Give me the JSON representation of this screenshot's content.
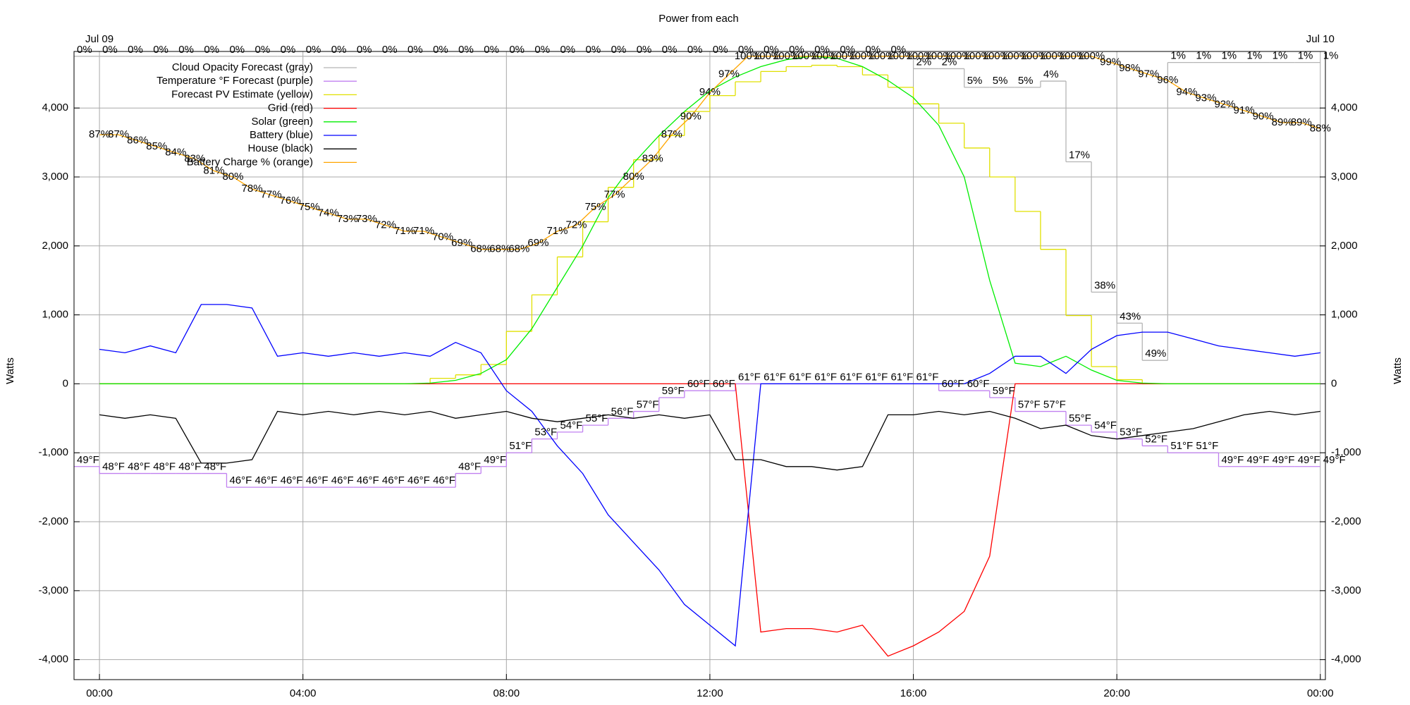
{
  "chart_data": {
    "type": "line",
    "title": "Power from each",
    "y_label": "Watts",
    "xlim": [
      -0.5,
      24.1
    ],
    "ylim": [
      -4290,
      4820
    ],
    "xticks": [
      {
        "value": 0,
        "label": "00:00"
      },
      {
        "value": 4,
        "label": "04:00"
      },
      {
        "value": 8,
        "label": "08:00"
      },
      {
        "value": 12,
        "label": "12:00"
      },
      {
        "value": 16,
        "label": "16:00"
      },
      {
        "value": 20,
        "label": "20:00"
      },
      {
        "value": 24,
        "label": "00:00"
      }
    ],
    "date_labels": [
      {
        "value": 0,
        "label": "Jul 09"
      },
      {
        "value": 24,
        "label": "Jul 10"
      }
    ],
    "yticks": [
      {
        "value": -4000,
        "label": "-4,000"
      },
      {
        "value": -3000,
        "label": "-3,000"
      },
      {
        "value": -2000,
        "label": "-2,000"
      },
      {
        "value": -1000,
        "label": "-1,000"
      },
      0,
      {
        "value": 1000,
        "label": "1,000"
      },
      {
        "value": 2000,
        "label": "2,000"
      },
      {
        "value": 3000,
        "label": "3,000"
      },
      {
        "value": 4000,
        "label": "4,000"
      }
    ],
    "grid": true,
    "legend": "top-left",
    "x": [
      0,
      0.5,
      1,
      1.5,
      2,
      2.5,
      3,
      3.5,
      4,
      4.5,
      5,
      5.5,
      6,
      6.5,
      7,
      7.5,
      8,
      8.5,
      9,
      9.5,
      10,
      10.5,
      11,
      11.5,
      12,
      12.5,
      13,
      13.5,
      14,
      14.5,
      15,
      15.5,
      16,
      16.5,
      17,
      17.5,
      18,
      18.5,
      19,
      19.5,
      20,
      20.5,
      21,
      21.5,
      22,
      22.5,
      23,
      23.5,
      24
    ],
    "series": [
      {
        "name": "Cloud Opacity Forecast (gray)",
        "color": "#b4b4b4",
        "label_color": "#b4b4b4",
        "step": true,
        "x": [
          -0.5,
          0,
          0.5,
          1,
          1.5,
          2,
          2.5,
          3,
          3.5,
          4,
          4.5,
          5,
          5.5,
          6,
          6.5,
          7,
          7.5,
          8,
          8.5,
          9,
          9.5,
          10,
          10.5,
          11,
          11.5,
          12,
          12.5,
          13,
          13.5,
          14,
          14.5,
          15,
          15.5,
          16,
          16.5,
          17,
          17.5,
          18,
          18.5,
          19,
          19.5,
          20,
          20.5,
          21,
          21.5,
          22,
          22.5,
          23,
          23.5,
          24
        ],
        "values": [
          0,
          0,
          0,
          0,
          0,
          0,
          0,
          0,
          0,
          0,
          0,
          0,
          0,
          0,
          0,
          0,
          0,
          0,
          0,
          0,
          0,
          0,
          0,
          0,
          0,
          0,
          0,
          0,
          0,
          0,
          0,
          0,
          0,
          2,
          2,
          5,
          5,
          5,
          4,
          17,
          38,
          43,
          49,
          1,
          1,
          1,
          1,
          1,
          1,
          1
        ],
        "value_labels": [
          "0%",
          "0%",
          "0%",
          "0%",
          "0%",
          "0%",
          "0%",
          "0%",
          "0%",
          "0%",
          "0%",
          "0%",
          "0%",
          "0%",
          "0%",
          "0%",
          "0%",
          "0%",
          "0%",
          "0%",
          "0%",
          "0%",
          "0%",
          "0%",
          "0%",
          "0%",
          "0%",
          "0%",
          "0%",
          "0%",
          "0%",
          "0%",
          "0%",
          "2%",
          "2%",
          "5%",
          "5%",
          "5%",
          "4%",
          "17%",
          "38%",
          "43%",
          "49%",
          "1%",
          "1%",
          "1%",
          "1%",
          "1%",
          "1%",
          "1%"
        ]
      },
      {
        "name": "Temperature °F Forecast (purple)",
        "color": "#c080f0",
        "label_color": "#c080f0",
        "step": true,
        "x": [
          -0.5,
          0,
          0.5,
          1,
          1.5,
          2,
          2.5,
          3,
          3.5,
          4,
          4.5,
          5,
          5.5,
          6,
          6.5,
          7,
          7.5,
          8,
          8.5,
          9,
          9.5,
          10,
          10.5,
          11,
          11.5,
          12,
          12.5,
          13,
          13.5,
          14,
          14.5,
          15,
          15.5,
          16,
          16.5,
          17,
          17.5,
          18,
          18.5,
          19,
          19.5,
          20,
          20.5,
          21,
          21.5,
          22,
          22.5,
          23,
          23.5,
          24
        ],
        "values": [
          49,
          48,
          48,
          48,
          48,
          48,
          46,
          46,
          46,
          46,
          46,
          46,
          46,
          46,
          46,
          48,
          49,
          51,
          53,
          54,
          55,
          56,
          57,
          59,
          60,
          60,
          61,
          61,
          61,
          61,
          61,
          61,
          61,
          61,
          60,
          60,
          59,
          57,
          57,
          55,
          54,
          53,
          52,
          51,
          51,
          49,
          49,
          49,
          49,
          49
        ],
        "value_labels": [
          "49°F",
          "48°F",
          "48°F",
          "48°F",
          "48°F",
          "48°F",
          "46°F",
          "46°F",
          "46°F",
          "46°F",
          "46°F",
          "46°F",
          "46°F",
          "46°F",
          "46°F",
          "48°F",
          "49°F",
          "51°F",
          "53°F",
          "54°F",
          "55°F",
          "56°F",
          "57°F",
          "59°F",
          "60°F",
          "60°F",
          "61°F",
          "61°F",
          "61°F",
          "61°F",
          "61°F",
          "61°F",
          "61°F",
          "61°F",
          "60°F",
          "60°F",
          "59°F",
          "57°F",
          "57°F",
          "55°F",
          "54°F",
          "53°F",
          "52°F",
          "51°F",
          "51°F",
          "49°F",
          "49°F",
          "49°F",
          "49°F",
          "49°F"
        ]
      },
      {
        "name": "Forecast PV Estimate (yellow)",
        "color": "#e0e000",
        "step": true,
        "values": [
          0,
          0,
          0,
          0,
          0,
          0,
          0,
          0,
          0,
          0,
          0,
          0,
          0,
          80,
          130,
          280,
          760,
          1290,
          1840,
          2350,
          2850,
          3250,
          3600,
          3950,
          4180,
          4380,
          4530,
          4600,
          4620,
          4600,
          4480,
          4300,
          4060,
          3780,
          3420,
          3000,
          2500,
          1950,
          990,
          250,
          60,
          0,
          0,
          0,
          0,
          0,
          0,
          0,
          0
        ]
      },
      {
        "name": "Grid (red)",
        "color": "#ff0000",
        "values": [
          0,
          0,
          0,
          0,
          0,
          0,
          0,
          0,
          0,
          0,
          0,
          0,
          0,
          0,
          0,
          0,
          0,
          0,
          0,
          0,
          0,
          0,
          0,
          0,
          0,
          0,
          -3600,
          -3550,
          -3550,
          -3600,
          -3500,
          -3950,
          -3800,
          -3600,
          -3300,
          -2500,
          0,
          0,
          0,
          0,
          0,
          0,
          0,
          0,
          0,
          0,
          0,
          0,
          0
        ]
      },
      {
        "name": "Solar (green)",
        "color": "#00ee00",
        "values": [
          0,
          0,
          0,
          0,
          0,
          0,
          0,
          0,
          0,
          0,
          0,
          0,
          0,
          10,
          50,
          150,
          350,
          800,
          1400,
          2000,
          2700,
          3200,
          3600,
          3950,
          4250,
          4450,
          4600,
          4700,
          4750,
          4720,
          4600,
          4400,
          4150,
          3750,
          3000,
          1500,
          300,
          250,
          400,
          200,
          50,
          10,
          0,
          0,
          0,
          0,
          0,
          0,
          0
        ]
      },
      {
        "name": "Battery (blue)",
        "color": "#0000ff",
        "values": [
          500,
          450,
          550,
          450,
          1150,
          1150,
          1100,
          400,
          450,
          400,
          450,
          400,
          450,
          400,
          600,
          450,
          -100,
          -400,
          -900,
          -1300,
          -1900,
          -2300,
          -2700,
          -3200,
          -3500,
          -3800,
          0,
          0,
          0,
          0,
          0,
          0,
          0,
          0,
          0,
          150,
          400,
          400,
          150,
          500,
          700,
          750,
          750,
          650,
          550,
          500,
          450,
          400,
          450
        ]
      },
      {
        "name": "House (black)",
        "color": "#000000",
        "values": [
          -450,
          -500,
          -450,
          -500,
          -1150,
          -1150,
          -1100,
          -400,
          -450,
          -400,
          -450,
          -400,
          -450,
          -400,
          -500,
          -450,
          -400,
          -500,
          -550,
          -500,
          -450,
          -500,
          -450,
          -500,
          -450,
          -1100,
          -1100,
          -1200,
          -1200,
          -1250,
          -1200,
          -450,
          -450,
          -400,
          -450,
          -400,
          -500,
          -650,
          -600,
          -750,
          -800,
          -750,
          -700,
          -650,
          -550,
          -450,
          -400,
          -450,
          -400
        ]
      },
      {
        "name": "Battery Charge % (orange)",
        "color": "#ffa500",
        "label_color": "#994c00",
        "x": [
          0,
          0.375,
          0.75,
          1.125,
          1.5,
          1.875,
          2.25,
          2.625,
          3,
          3.375,
          3.75,
          4.125,
          4.5,
          4.875,
          5.25,
          5.625,
          6,
          6.375,
          6.75,
          7.125,
          7.5,
          7.875,
          8.25,
          8.625,
          9,
          9.375,
          9.75,
          10.125,
          10.5,
          10.875,
          11.25,
          11.625,
          12,
          12.375,
          12.75,
          13.125,
          13.5,
          13.875,
          14.25,
          14.625,
          15,
          15.375,
          15.75,
          16.125,
          16.5,
          16.875,
          17.25,
          17.625,
          18,
          18.375,
          18.75,
          19.125,
          19.5,
          19.875,
          20.25,
          20.625,
          21,
          21.375,
          21.75,
          22.125,
          22.5,
          22.875,
          23.25,
          23.625,
          24
        ],
        "values": [
          87,
          87,
          86,
          85,
          84,
          83,
          81,
          80,
          78,
          77,
          76,
          75,
          74,
          73,
          73,
          72,
          71,
          71,
          70,
          69,
          68,
          68,
          68,
          69,
          71,
          72,
          75,
          77,
          80,
          83,
          87,
          90,
          94,
          97,
          100,
          100,
          100,
          100,
          100,
          100,
          100,
          100,
          100,
          100,
          100,
          100,
          100,
          100,
          100,
          100,
          100,
          100,
          100,
          99,
          98,
          97,
          96,
          94,
          93,
          92,
          91,
          90,
          89,
          89,
          88
        ],
        "value_labels": [
          "87%",
          "87%",
          "86%",
          "85%",
          "84%",
          "83%",
          "81%",
          "80%",
          "78%",
          "77%",
          "76%",
          "75%",
          "74%",
          "73%",
          "73%",
          "72%",
          "71%",
          "71%",
          "70%",
          "69%",
          "68%",
          "68%",
          "68%",
          "69%",
          "71%",
          "72%",
          "75%",
          "77%",
          "80%",
          "83%",
          "87%",
          "90%",
          "94%",
          "97%",
          "100%",
          "100%",
          "100%",
          "100%",
          "100%",
          "100%",
          "100%",
          "100%",
          "100%",
          "100%",
          "100%",
          "100%",
          "100%",
          "100%",
          "100%",
          "100%",
          "100%",
          "100%",
          "100%",
          "99%",
          "98%",
          "97%",
          "96%",
          "94%",
          "93%",
          "92%",
          "91%",
          "90%",
          "89%",
          "89%",
          "88%"
        ]
      }
    ]
  }
}
